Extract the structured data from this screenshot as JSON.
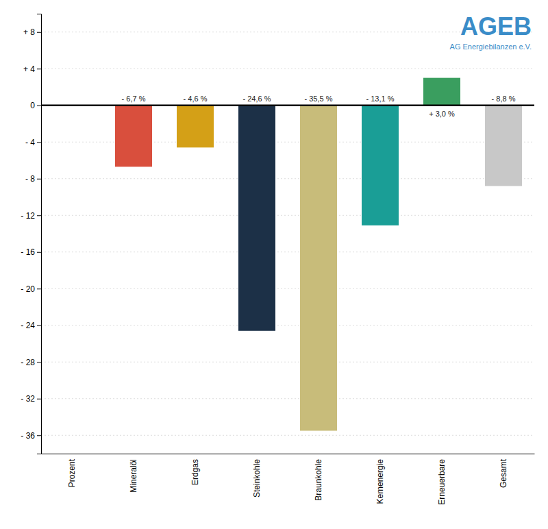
{
  "chart_data": {
    "type": "bar",
    "categories": [
      "Prozent",
      "Mineralöl",
      "Erdgas",
      "Steinkohle",
      "Braunkohle",
      "Kernenergie",
      "Erneuerbare",
      "Gesamt"
    ],
    "values": [
      0,
      -6.7,
      -4.6,
      -24.6,
      -35.5,
      -13.1,
      3.0,
      -8.8
    ],
    "value_labels": [
      null,
      "- 6,7 %",
      "- 4,6 %",
      "- 24,6 %",
      "- 35,5 %",
      "- 13,1 %",
      "+ 3,0 %",
      "- 8,8 %"
    ],
    "colors": [
      "#ffffff",
      "#d94f3d",
      "#d4a017",
      "#1c3047",
      "#c8bc7a",
      "#1a9e96",
      "#3a9e5f",
      "#c8c8c8"
    ],
    "ylim": [
      -38,
      10
    ],
    "yticks": [
      {
        "value": -36,
        "label": "- 36"
      },
      {
        "value": -32,
        "label": "- 32"
      },
      {
        "value": -28,
        "label": "- 28"
      },
      {
        "value": -24,
        "label": "- 24"
      },
      {
        "value": -20,
        "label": "- 20"
      },
      {
        "value": -16,
        "label": "- 16"
      },
      {
        "value": -12,
        "label": "- 12"
      },
      {
        "value": -8,
        "label": "- 8"
      },
      {
        "value": -4,
        "label": "- 4"
      },
      0,
      {
        "value": 4,
        "label": "+ 4"
      },
      {
        "value": 8,
        "label": "+ 8"
      }
    ],
    "grid": true,
    "data_labels": true,
    "annotations": [
      {
        "text": "AGEB",
        "color": "#3a8cc8"
      },
      {
        "text": "AG Energiebilanzen e.V.",
        "color": "#3a8cc8"
      }
    ]
  }
}
